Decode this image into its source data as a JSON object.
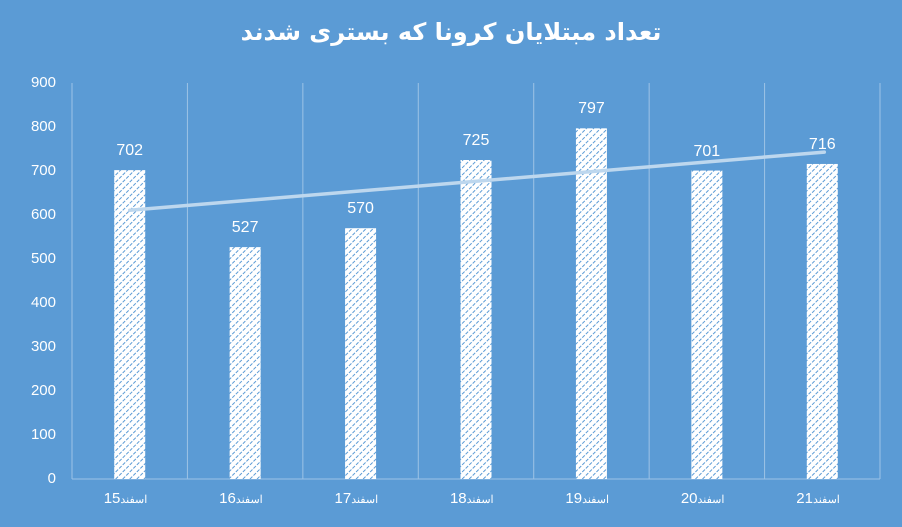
{
  "chart_data": {
    "type": "bar",
    "title": "تعداد مبتلایان کرونا که بستری شدند",
    "categories": [
      "15 اسفند",
      "16 اسفند",
      "17 اسفند",
      "18 اسفند",
      "19 اسفند",
      "20 اسفند",
      "21 اسفند"
    ],
    "category_numbers": [
      "15",
      "16",
      "17",
      "18",
      "19",
      "20",
      "21"
    ],
    "category_month": "اسفند",
    "values": [
      702,
      527,
      570,
      725,
      797,
      701,
      716
    ],
    "trendline": {
      "type": "linear",
      "start": 610.7,
      "end": 743.0
    },
    "xlabel": "",
    "ylabel": "",
    "ylim": [
      0,
      900
    ],
    "yticks": [
      0,
      100,
      200,
      300,
      400,
      500,
      600,
      700,
      800,
      900
    ],
    "grid": {
      "vertical": true,
      "horizontal": false
    },
    "legend": null,
    "data_labels": true
  },
  "colors": {
    "background": "#5b9bd5",
    "bar_fill": "#ffffff",
    "bar_pattern": "#5b9bd5",
    "trendline": "#bdd7ee",
    "gridline": "#9dc3e6"
  }
}
